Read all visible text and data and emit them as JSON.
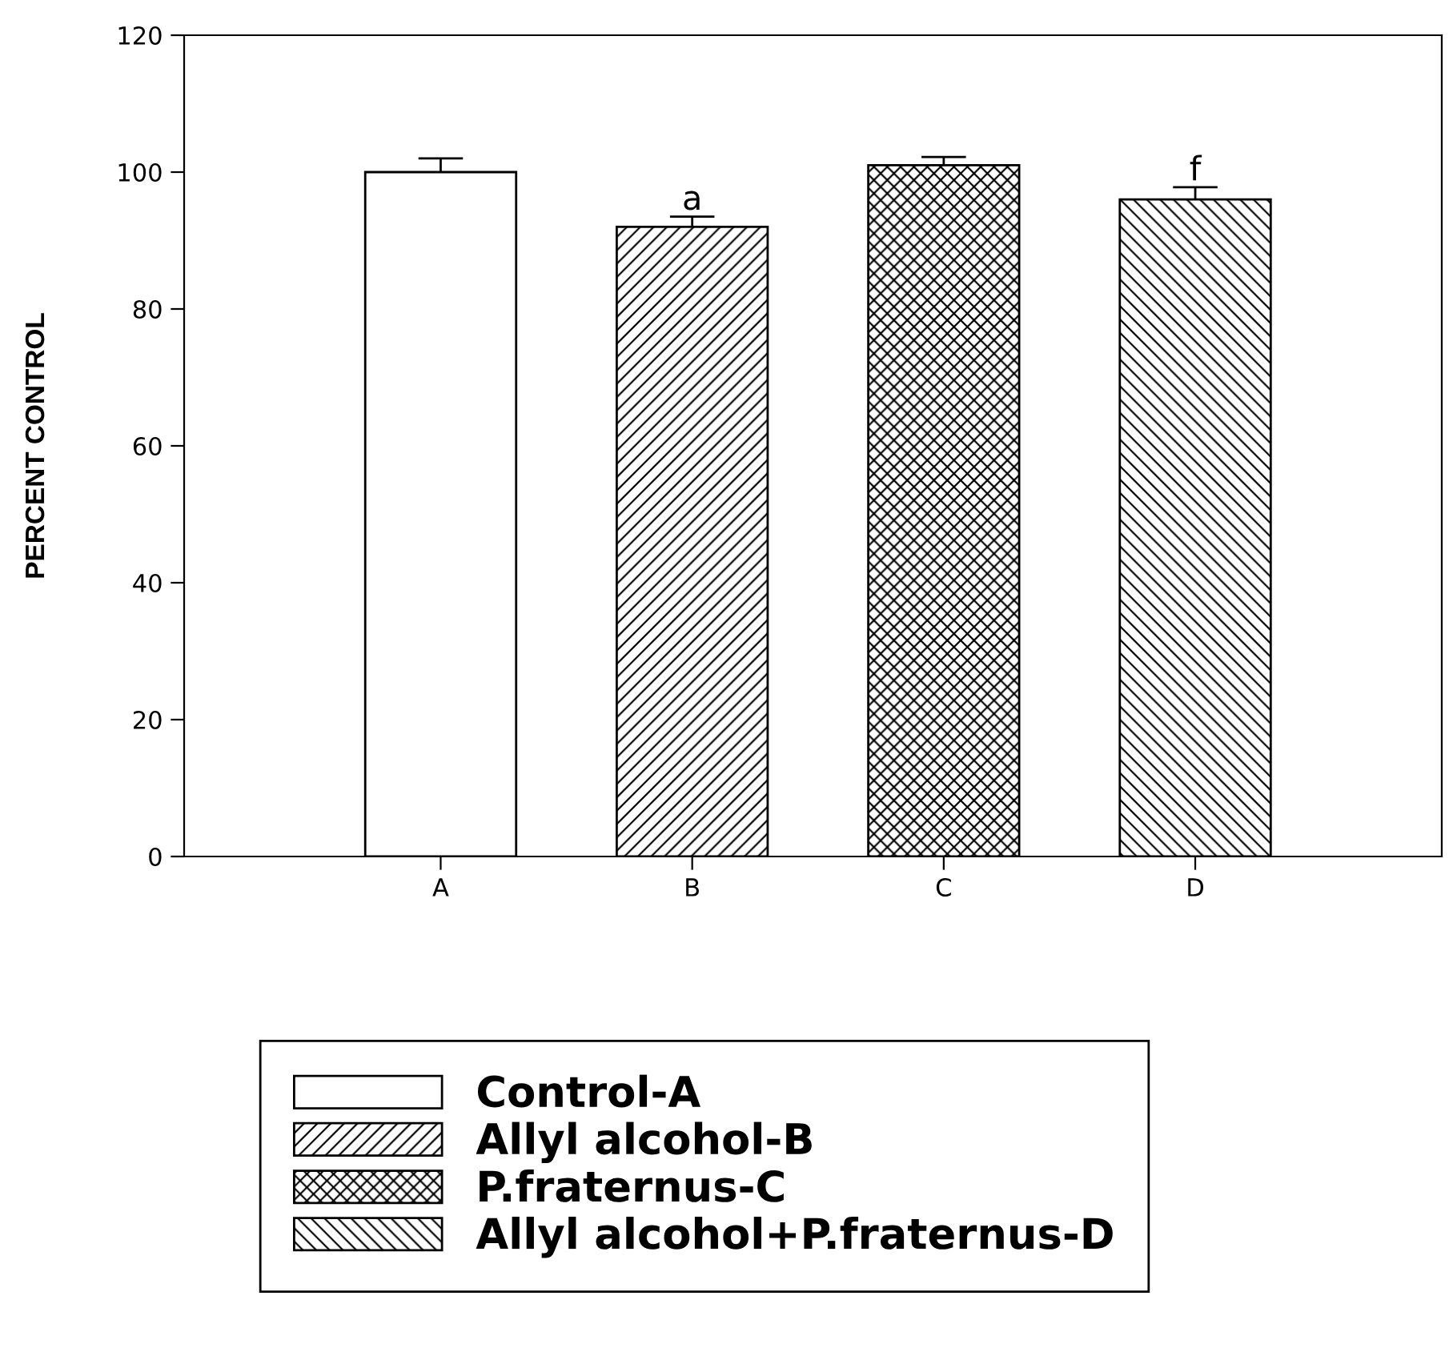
{
  "chart_data": {
    "type": "bar",
    "ylabel": "PERCENT CONTROL",
    "categories": [
      "A",
      "B",
      "C",
      "D"
    ],
    "series": [
      {
        "name": "Control-A",
        "color": "#ffffff",
        "values": [
          100,
          null,
          null,
          null
        ],
        "errors": [
          2,
          null,
          null,
          null
        ]
      },
      {
        "name": "Allyl alcohol-B",
        "color": "#000000",
        "values": [
          null,
          92,
          null,
          null
        ],
        "errors": [
          null,
          1.5,
          null,
          null
        ]
      },
      {
        "name": "P.fraternus-C",
        "color": "#000000",
        "values": [
          null,
          null,
          101,
          null
        ],
        "errors": [
          null,
          null,
          1.2,
          null
        ]
      },
      {
        "name": "Allyl alcohol+P.fraternus-D",
        "color": "#000000",
        "values": [
          null,
          null,
          null,
          96
        ],
        "errors": [
          null,
          null,
          null,
          1.8
        ]
      }
    ],
    "annotations": [
      "a",
      "f"
    ],
    "ylim": [
      0,
      120
    ],
    "yticks": [
      0,
      20,
      40,
      60,
      80,
      100,
      120
    ],
    "grid": false,
    "legend": "bottom"
  }
}
